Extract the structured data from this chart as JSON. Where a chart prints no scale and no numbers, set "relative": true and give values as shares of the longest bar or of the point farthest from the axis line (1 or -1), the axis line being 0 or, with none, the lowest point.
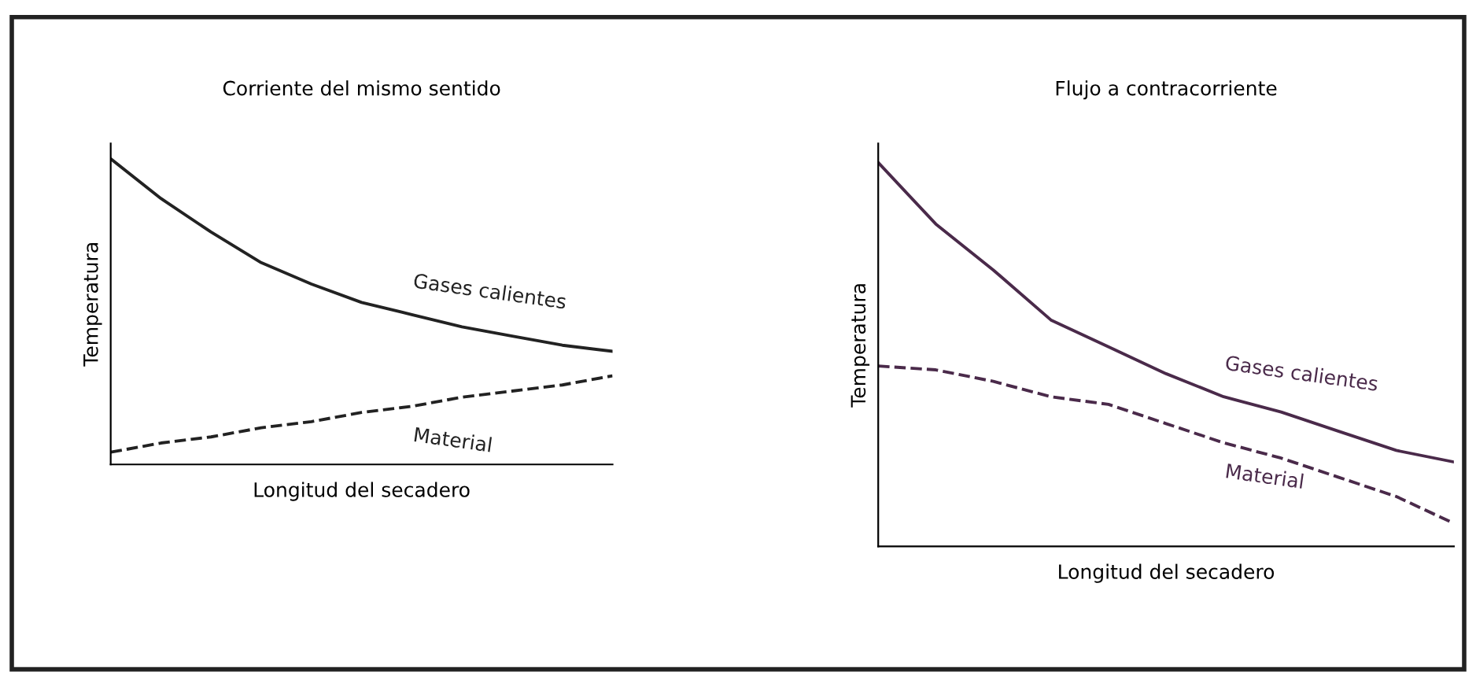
{
  "chart_data": [
    {
      "type": "line",
      "title": "Corriente del mismo sentido",
      "xlabel": "Longitud del secadero",
      "ylabel": "Temperatura",
      "relative": true,
      "tick_labels": false,
      "legend": false,
      "categories": [
        null,
        null,
        null,
        null,
        null,
        null,
        null,
        null,
        null,
        null,
        null
      ],
      "series": [
        {
          "name": "Gases calientes",
          "color": "#222222",
          "line_style": "solid",
          "values": [
            1,
            0.87,
            0.76,
            0.66,
            0.59,
            0.53,
            0.49,
            0.45,
            0.42,
            0.39,
            0.37
          ]
        },
        {
          "name": "Material",
          "color": "#222222",
          "line_style": "dashed",
          "values": [
            0.04,
            0.07,
            0.09,
            0.12,
            0.14,
            0.17,
            0.19,
            0.22,
            0.24,
            0.26,
            0.29
          ]
        }
      ]
    },
    {
      "type": "line",
      "title": "Flujo a contracorriente",
      "xlabel": "Longitud del secadero",
      "ylabel": "Temperatura",
      "relative": true,
      "tick_labels": false,
      "legend": false,
      "categories": [
        null,
        null,
        null,
        null,
        null,
        null,
        null,
        null,
        null,
        null,
        null
      ],
      "series": [
        {
          "name": "Gases calientes",
          "color": "#4a2a4a",
          "line_style": "solid",
          "values": [
            1,
            0.84,
            0.72,
            0.59,
            0.52,
            0.45,
            0.39,
            0.35,
            0.3,
            0.25,
            0.22
          ]
        },
        {
          "name": "Material",
          "color": "#4a2a4a",
          "line_style": "dashed",
          "values": [
            0.47,
            0.46,
            0.43,
            0.39,
            0.37,
            0.32,
            0.27,
            0.23,
            0.18,
            0.13,
            0.06
          ]
        }
      ]
    }
  ]
}
